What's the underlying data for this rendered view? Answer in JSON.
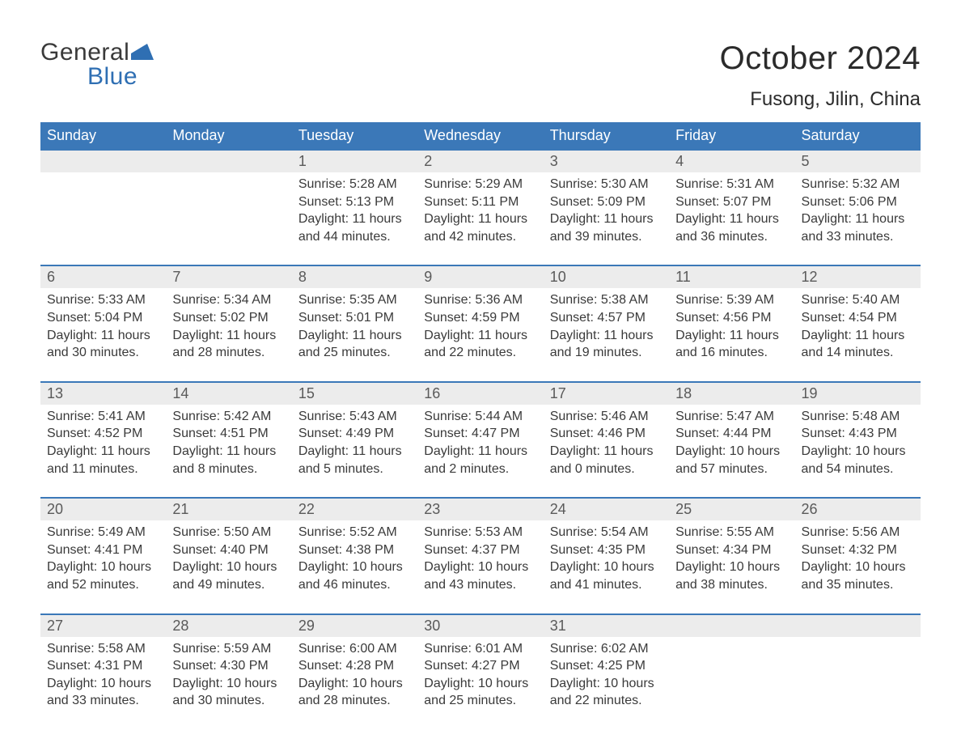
{
  "brand": {
    "general": "General",
    "blue": "Blue",
    "accent_color": "#2f6fb3",
    "flag_color": "#2f6fb3"
  },
  "title": "October 2024",
  "location": "Fusong, Jilin, China",
  "header_color": "#3b78b8",
  "daynum_bg": "#ececec",
  "weekdays": [
    "Sunday",
    "Monday",
    "Tuesday",
    "Wednesday",
    "Thursday",
    "Friday",
    "Saturday"
  ],
  "weeks": [
    [
      {
        "empty": true
      },
      {
        "empty": true
      },
      {
        "day": "1",
        "sunrise": "Sunrise: 5:28 AM",
        "sunset": "Sunset: 5:13 PM",
        "daylight1": "Daylight: 11 hours",
        "daylight2": "and 44 minutes."
      },
      {
        "day": "2",
        "sunrise": "Sunrise: 5:29 AM",
        "sunset": "Sunset: 5:11 PM",
        "daylight1": "Daylight: 11 hours",
        "daylight2": "and 42 minutes."
      },
      {
        "day": "3",
        "sunrise": "Sunrise: 5:30 AM",
        "sunset": "Sunset: 5:09 PM",
        "daylight1": "Daylight: 11 hours",
        "daylight2": "and 39 minutes."
      },
      {
        "day": "4",
        "sunrise": "Sunrise: 5:31 AM",
        "sunset": "Sunset: 5:07 PM",
        "daylight1": "Daylight: 11 hours",
        "daylight2": "and 36 minutes."
      },
      {
        "day": "5",
        "sunrise": "Sunrise: 5:32 AM",
        "sunset": "Sunset: 5:06 PM",
        "daylight1": "Daylight: 11 hours",
        "daylight2": "and 33 minutes."
      }
    ],
    [
      {
        "day": "6",
        "sunrise": "Sunrise: 5:33 AM",
        "sunset": "Sunset: 5:04 PM",
        "daylight1": "Daylight: 11 hours",
        "daylight2": "and 30 minutes."
      },
      {
        "day": "7",
        "sunrise": "Sunrise: 5:34 AM",
        "sunset": "Sunset: 5:02 PM",
        "daylight1": "Daylight: 11 hours",
        "daylight2": "and 28 minutes."
      },
      {
        "day": "8",
        "sunrise": "Sunrise: 5:35 AM",
        "sunset": "Sunset: 5:01 PM",
        "daylight1": "Daylight: 11 hours",
        "daylight2": "and 25 minutes."
      },
      {
        "day": "9",
        "sunrise": "Sunrise: 5:36 AM",
        "sunset": "Sunset: 4:59 PM",
        "daylight1": "Daylight: 11 hours",
        "daylight2": "and 22 minutes."
      },
      {
        "day": "10",
        "sunrise": "Sunrise: 5:38 AM",
        "sunset": "Sunset: 4:57 PM",
        "daylight1": "Daylight: 11 hours",
        "daylight2": "and 19 minutes."
      },
      {
        "day": "11",
        "sunrise": "Sunrise: 5:39 AM",
        "sunset": "Sunset: 4:56 PM",
        "daylight1": "Daylight: 11 hours",
        "daylight2": "and 16 minutes."
      },
      {
        "day": "12",
        "sunrise": "Sunrise: 5:40 AM",
        "sunset": "Sunset: 4:54 PM",
        "daylight1": "Daylight: 11 hours",
        "daylight2": "and 14 minutes."
      }
    ],
    [
      {
        "day": "13",
        "sunrise": "Sunrise: 5:41 AM",
        "sunset": "Sunset: 4:52 PM",
        "daylight1": "Daylight: 11 hours",
        "daylight2": "and 11 minutes."
      },
      {
        "day": "14",
        "sunrise": "Sunrise: 5:42 AM",
        "sunset": "Sunset: 4:51 PM",
        "daylight1": "Daylight: 11 hours",
        "daylight2": "and 8 minutes."
      },
      {
        "day": "15",
        "sunrise": "Sunrise: 5:43 AM",
        "sunset": "Sunset: 4:49 PM",
        "daylight1": "Daylight: 11 hours",
        "daylight2": "and 5 minutes."
      },
      {
        "day": "16",
        "sunrise": "Sunrise: 5:44 AM",
        "sunset": "Sunset: 4:47 PM",
        "daylight1": "Daylight: 11 hours",
        "daylight2": "and 2 minutes."
      },
      {
        "day": "17",
        "sunrise": "Sunrise: 5:46 AM",
        "sunset": "Sunset: 4:46 PM",
        "daylight1": "Daylight: 11 hours",
        "daylight2": "and 0 minutes."
      },
      {
        "day": "18",
        "sunrise": "Sunrise: 5:47 AM",
        "sunset": "Sunset: 4:44 PM",
        "daylight1": "Daylight: 10 hours",
        "daylight2": "and 57 minutes."
      },
      {
        "day": "19",
        "sunrise": "Sunrise: 5:48 AM",
        "sunset": "Sunset: 4:43 PM",
        "daylight1": "Daylight: 10 hours",
        "daylight2": "and 54 minutes."
      }
    ],
    [
      {
        "day": "20",
        "sunrise": "Sunrise: 5:49 AM",
        "sunset": "Sunset: 4:41 PM",
        "daylight1": "Daylight: 10 hours",
        "daylight2": "and 52 minutes."
      },
      {
        "day": "21",
        "sunrise": "Sunrise: 5:50 AM",
        "sunset": "Sunset: 4:40 PM",
        "daylight1": "Daylight: 10 hours",
        "daylight2": "and 49 minutes."
      },
      {
        "day": "22",
        "sunrise": "Sunrise: 5:52 AM",
        "sunset": "Sunset: 4:38 PM",
        "daylight1": "Daylight: 10 hours",
        "daylight2": "and 46 minutes."
      },
      {
        "day": "23",
        "sunrise": "Sunrise: 5:53 AM",
        "sunset": "Sunset: 4:37 PM",
        "daylight1": "Daylight: 10 hours",
        "daylight2": "and 43 minutes."
      },
      {
        "day": "24",
        "sunrise": "Sunrise: 5:54 AM",
        "sunset": "Sunset: 4:35 PM",
        "daylight1": "Daylight: 10 hours",
        "daylight2": "and 41 minutes."
      },
      {
        "day": "25",
        "sunrise": "Sunrise: 5:55 AM",
        "sunset": "Sunset: 4:34 PM",
        "daylight1": "Daylight: 10 hours",
        "daylight2": "and 38 minutes."
      },
      {
        "day": "26",
        "sunrise": "Sunrise: 5:56 AM",
        "sunset": "Sunset: 4:32 PM",
        "daylight1": "Daylight: 10 hours",
        "daylight2": "and 35 minutes."
      }
    ],
    [
      {
        "day": "27",
        "sunrise": "Sunrise: 5:58 AM",
        "sunset": "Sunset: 4:31 PM",
        "daylight1": "Daylight: 10 hours",
        "daylight2": "and 33 minutes."
      },
      {
        "day": "28",
        "sunrise": "Sunrise: 5:59 AM",
        "sunset": "Sunset: 4:30 PM",
        "daylight1": "Daylight: 10 hours",
        "daylight2": "and 30 minutes."
      },
      {
        "day": "29",
        "sunrise": "Sunrise: 6:00 AM",
        "sunset": "Sunset: 4:28 PM",
        "daylight1": "Daylight: 10 hours",
        "daylight2": "and 28 minutes."
      },
      {
        "day": "30",
        "sunrise": "Sunrise: 6:01 AM",
        "sunset": "Sunset: 4:27 PM",
        "daylight1": "Daylight: 10 hours",
        "daylight2": "and 25 minutes."
      },
      {
        "day": "31",
        "sunrise": "Sunrise: 6:02 AM",
        "sunset": "Sunset: 4:25 PM",
        "daylight1": "Daylight: 10 hours",
        "daylight2": "and 22 minutes."
      },
      {
        "empty": true
      },
      {
        "empty": true
      }
    ]
  ]
}
